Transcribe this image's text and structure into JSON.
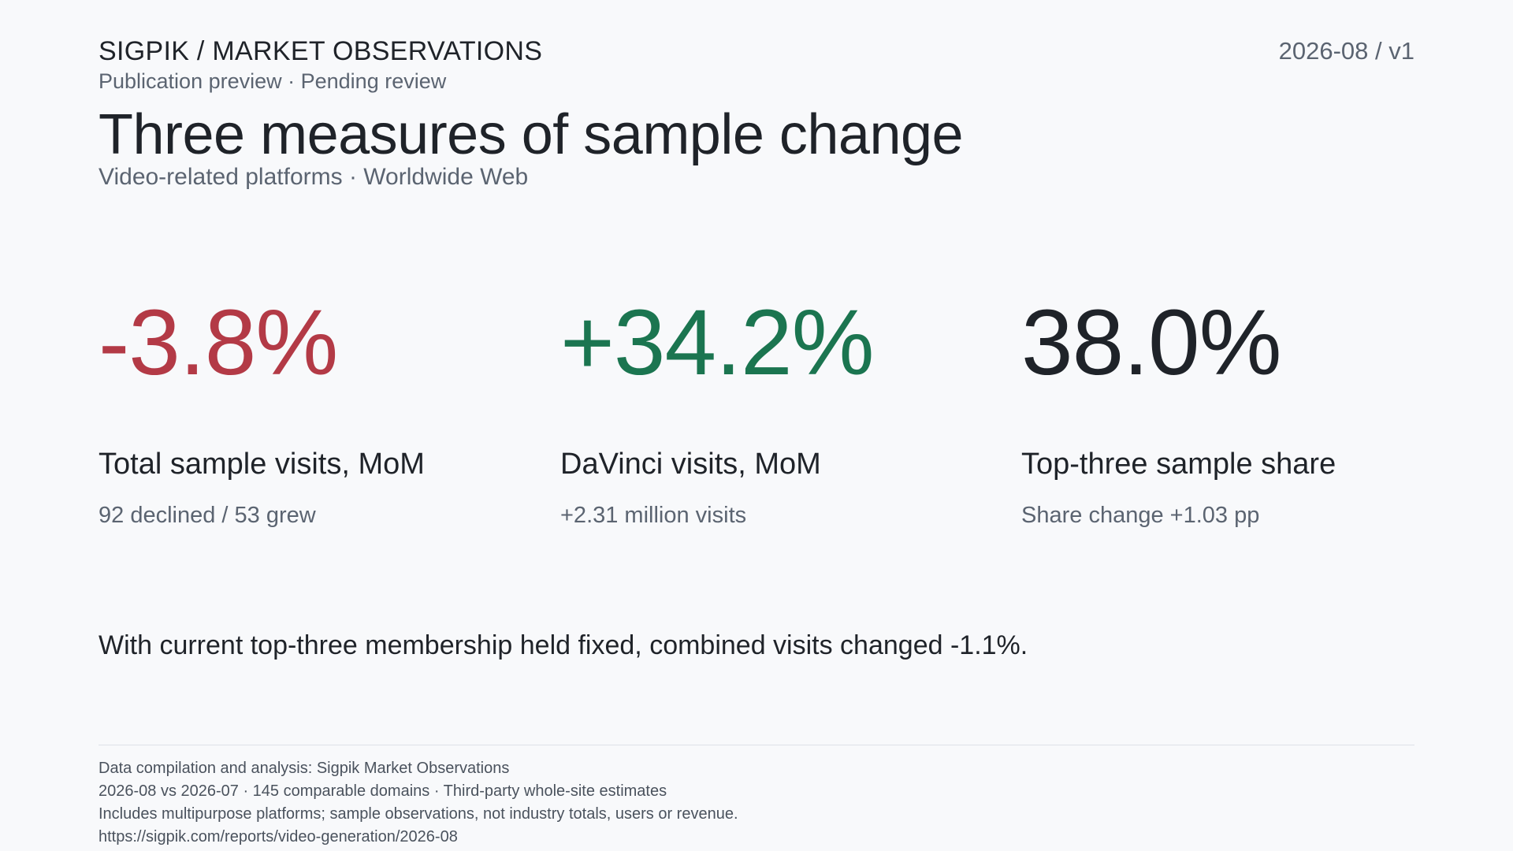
{
  "header": {
    "brand": "SIGPIK / MARKET OBSERVATIONS",
    "status": "Publication preview · Pending review",
    "version": "2026-08 / v1"
  },
  "title": "Three measures of sample change",
  "subtitle": "Video-related platforms · Worldwide Web",
  "colors": {
    "negative": "#b33a46",
    "positive": "#1b7550",
    "neutral": "#1f2329"
  },
  "metrics": [
    {
      "value": "-3.8%",
      "label": "Total sample visits, MoM",
      "detail": "92 declined / 53 grew"
    },
    {
      "value": "+34.2%",
      "label": "DaVinci visits, MoM",
      "detail": "+2.31 million visits"
    },
    {
      "value": "38.0%",
      "label": "Top-three sample share",
      "detail": "Share change +1.03 pp"
    }
  ],
  "note": "With current top-three membership held fixed, combined visits changed -1.1%.",
  "footer": [
    "Data compilation and analysis: Sigpik Market Observations",
    "2026-08 vs 2026-07 · 145 comparable domains · Third-party whole-site estimates",
    "Includes multipurpose platforms; sample observations, not industry totals, users or revenue.",
    "https://sigpik.com/reports/video-generation/2026-08"
  ]
}
